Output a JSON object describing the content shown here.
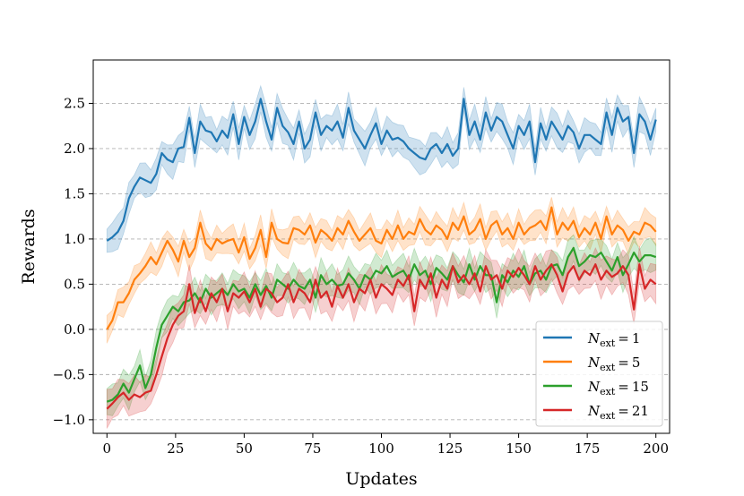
{
  "chart_data": {
    "type": "line",
    "title": "",
    "xlabel": "Updates",
    "ylabel": "Rewards",
    "xlim": [
      -5,
      205
    ],
    "ylim": [
      -1.15,
      2.98
    ],
    "xticks": [
      0,
      25,
      50,
      75,
      100,
      125,
      150,
      175,
      200
    ],
    "yticks": [
      -1.0,
      -0.5,
      0.0,
      0.5,
      1.0,
      1.5,
      2.0,
      2.5
    ],
    "ytick_labels": [
      "−1.0",
      "−0.5",
      "0.0",
      "0.5",
      "1.0",
      "1.5",
      "2.0",
      "2.5"
    ],
    "grid": "horizontal dashed",
    "legend_position": "lower-right",
    "x": [
      0,
      2,
      4,
      6,
      8,
      10,
      12,
      14,
      16,
      18,
      20,
      22,
      24,
      26,
      28,
      30,
      32,
      34,
      36,
      38,
      40,
      42,
      44,
      46,
      48,
      50,
      52,
      54,
      56,
      58,
      60,
      62,
      64,
      66,
      68,
      70,
      72,
      74,
      76,
      78,
      80,
      82,
      84,
      86,
      88,
      90,
      92,
      94,
      96,
      98,
      100,
      102,
      104,
      106,
      108,
      110,
      112,
      114,
      116,
      118,
      120,
      122,
      124,
      126,
      128,
      130,
      132,
      134,
      136,
      138,
      140,
      142,
      144,
      146,
      148,
      150,
      152,
      154,
      156,
      158,
      160,
      162,
      164,
      166,
      168,
      170,
      172,
      174,
      176,
      178,
      180,
      182,
      184,
      186,
      188,
      190,
      192,
      194,
      196,
      198,
      200
    ],
    "series": [
      {
        "name": "N_ext = 1",
        "legend_main": "N",
        "legend_sub": "ext",
        "legend_rest": " = 1",
        "color": "#1f77b4",
        "band": 0.16,
        "values": [
          0.98,
          1.02,
          1.08,
          1.2,
          1.45,
          1.58,
          1.68,
          1.65,
          1.62,
          1.72,
          1.95,
          1.88,
          1.85,
          2.0,
          2.02,
          2.34,
          1.95,
          2.3,
          2.2,
          2.18,
          2.08,
          2.2,
          2.12,
          2.38,
          2.05,
          2.35,
          2.15,
          2.3,
          2.55,
          2.3,
          2.1,
          2.45,
          2.25,
          2.18,
          2.05,
          2.3,
          2.0,
          2.1,
          2.4,
          2.15,
          2.25,
          2.2,
          2.3,
          2.12,
          2.45,
          2.2,
          2.1,
          2.0,
          2.15,
          2.28,
          2.05,
          2.2,
          2.1,
          2.12,
          2.08,
          2.0,
          1.95,
          1.9,
          1.88,
          2.0,
          2.05,
          1.95,
          2.05,
          1.92,
          2.0,
          2.55,
          2.15,
          2.3,
          2.1,
          2.4,
          2.2,
          2.35,
          2.3,
          2.15,
          2.0,
          2.25,
          2.15,
          2.3,
          1.85,
          2.28,
          2.1,
          2.3,
          2.2,
          2.1,
          2.25,
          2.18,
          2.0,
          2.15,
          2.15,
          2.1,
          2.05,
          2.4,
          2.15,
          2.45,
          2.3,
          2.35,
          1.95,
          2.38,
          2.3,
          2.1,
          2.32
        ]
      },
      {
        "name": "N_ext = 5",
        "legend_main": "N",
        "legend_sub": "ext",
        "legend_rest": " = 5",
        "color": "#ff7f0e",
        "band": 0.14,
        "values": [
          0.0,
          0.1,
          0.3,
          0.3,
          0.4,
          0.55,
          0.62,
          0.7,
          0.8,
          0.72,
          0.85,
          0.98,
          0.88,
          0.75,
          0.98,
          0.8,
          0.9,
          1.18,
          0.95,
          0.88,
          1.0,
          0.95,
          0.98,
          1.0,
          0.85,
          1.02,
          0.78,
          0.9,
          1.1,
          0.8,
          1.18,
          1.0,
          0.96,
          0.95,
          1.12,
          1.1,
          1.05,
          1.15,
          0.96,
          1.1,
          1.05,
          0.98,
          1.12,
          1.05,
          1.2,
          1.08,
          0.98,
          1.05,
          1.12,
          0.98,
          0.95,
          1.1,
          1.0,
          1.15,
          1.0,
          1.08,
          1.05,
          1.22,
          1.1,
          1.05,
          1.15,
          1.1,
          1.0,
          1.18,
          1.1,
          1.25,
          1.05,
          1.1,
          1.22,
          1.0,
          1.15,
          1.2,
          1.05,
          1.12,
          1.0,
          1.18,
          1.05,
          1.12,
          1.15,
          1.2,
          1.1,
          1.35,
          1.05,
          1.18,
          1.1,
          1.2,
          1.02,
          1.12,
          1.05,
          1.18,
          1.0,
          1.25,
          1.05,
          1.15,
          1.1,
          0.98,
          1.08,
          1.05,
          1.18,
          1.15,
          1.08
        ]
      },
      {
        "name": "N_ext = 15",
        "legend_main": "N",
        "legend_sub": "ext",
        "legend_rest": " = 15",
        "color": "#2ca02c",
        "band": 0.16,
        "values": [
          -0.8,
          -0.78,
          -0.72,
          -0.6,
          -0.7,
          -0.55,
          -0.4,
          -0.65,
          -0.5,
          -0.2,
          0.05,
          0.15,
          0.25,
          0.2,
          0.3,
          0.32,
          0.4,
          0.3,
          0.45,
          0.35,
          0.4,
          0.45,
          0.38,
          0.5,
          0.42,
          0.45,
          0.35,
          0.5,
          0.38,
          0.48,
          0.35,
          0.55,
          0.5,
          0.45,
          0.55,
          0.48,
          0.45,
          0.55,
          0.35,
          0.6,
          0.5,
          0.55,
          0.48,
          0.5,
          0.62,
          0.55,
          0.45,
          0.6,
          0.55,
          0.65,
          0.62,
          0.7,
          0.58,
          0.62,
          0.65,
          0.55,
          0.72,
          0.6,
          0.65,
          0.5,
          0.68,
          0.62,
          0.55,
          0.7,
          0.6,
          0.52,
          0.72,
          0.55,
          0.7,
          0.6,
          0.6,
          0.3,
          0.6,
          0.52,
          0.65,
          0.58,
          0.7,
          0.5,
          0.62,
          0.65,
          0.55,
          0.7,
          0.72,
          0.6,
          0.8,
          0.9,
          0.7,
          0.75,
          0.82,
          0.8,
          0.85,
          0.75,
          0.65,
          0.8,
          0.6,
          0.72,
          0.85,
          0.75,
          0.82,
          0.82,
          0.8
        ]
      },
      {
        "name": "N_ext = 21",
        "legend_main": "N",
        "legend_sub": "ext",
        "legend_rest": " = 21",
        "color": "#d62728",
        "band": 0.18,
        "values": [
          -0.88,
          -0.82,
          -0.75,
          -0.7,
          -0.78,
          -0.72,
          -0.75,
          -0.7,
          -0.68,
          -0.5,
          -0.3,
          -0.1,
          0.05,
          0.15,
          0.2,
          0.5,
          0.18,
          0.35,
          0.2,
          0.4,
          0.3,
          0.45,
          0.2,
          0.4,
          0.35,
          0.42,
          0.3,
          0.45,
          0.25,
          0.45,
          0.4,
          0.3,
          0.35,
          0.5,
          0.3,
          0.45,
          0.4,
          0.3,
          0.55,
          0.35,
          0.42,
          0.25,
          0.48,
          0.35,
          0.5,
          0.3,
          0.45,
          0.4,
          0.55,
          0.35,
          0.5,
          0.45,
          0.38,
          0.55,
          0.48,
          0.6,
          0.2,
          0.55,
          0.45,
          0.62,
          0.35,
          0.55,
          0.45,
          0.7,
          0.52,
          0.6,
          0.5,
          0.62,
          0.42,
          0.7,
          0.55,
          0.6,
          0.45,
          0.65,
          0.58,
          0.68,
          0.6,
          0.5,
          0.7,
          0.55,
          0.65,
          0.72,
          0.6,
          0.42,
          0.62,
          0.7,
          0.55,
          0.65,
          0.6,
          0.72,
          0.55,
          0.65,
          0.58,
          0.62,
          0.7,
          0.6,
          0.22,
          0.72,
          0.45,
          0.55,
          0.5
        ]
      }
    ]
  }
}
